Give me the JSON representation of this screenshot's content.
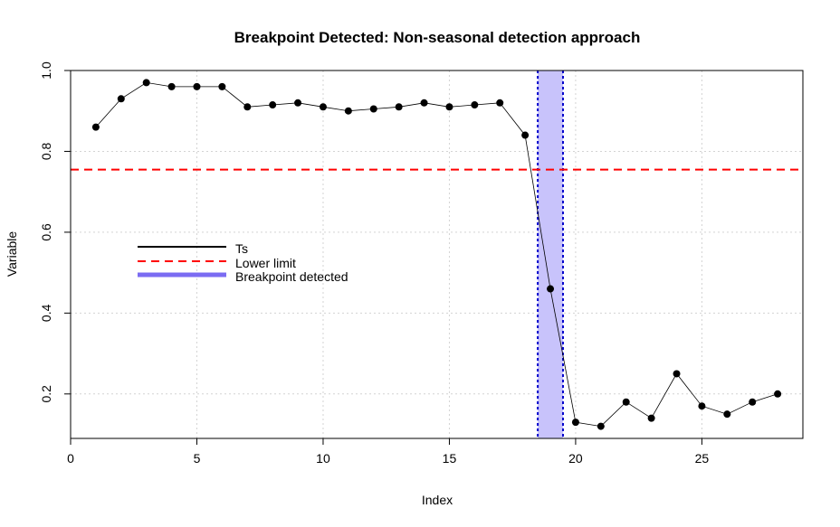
{
  "chart_data": {
    "type": "line",
    "title": "Breakpoint Detected: Non-seasonal detection approach",
    "xlabel": "Index",
    "ylabel": "Variable",
    "xlim": [
      0,
      29
    ],
    "ylim": [
      0.09,
      1.0
    ],
    "x_ticks": [
      0,
      5,
      10,
      15,
      20,
      25
    ],
    "y_ticks": [
      0.2,
      0.4,
      0.6,
      0.8,
      1.0
    ],
    "x_tick_labels": [
      "0",
      "5",
      "10",
      "15",
      "20",
      "25"
    ],
    "y_tick_labels": [
      "0.2",
      "0.4",
      "0.6",
      "0.8",
      "1.0"
    ],
    "grid": true,
    "series": [
      {
        "name": "Ts",
        "color": "#000000",
        "x": [
          1,
          2,
          3,
          4,
          5,
          6,
          7,
          8,
          9,
          10,
          11,
          12,
          13,
          14,
          15,
          16,
          17,
          18,
          19,
          20,
          21,
          22,
          23,
          24,
          25,
          26,
          27,
          28
        ],
        "values": [
          0.86,
          0.93,
          0.97,
          0.96,
          0.96,
          0.96,
          0.91,
          0.915,
          0.92,
          0.91,
          0.9,
          0.905,
          0.91,
          0.92,
          0.91,
          0.915,
          0.92,
          0.84,
          0.46,
          0.13,
          0.12,
          0.18,
          0.14,
          0.25,
          0.17,
          0.15,
          0.18,
          0.2
        ]
      }
    ],
    "lower_limit": {
      "name": "Lower limit",
      "value": 0.755,
      "color": "#ff0000"
    },
    "breakpoint": {
      "name": "Breakpoint detected",
      "from": 18.5,
      "to": 19.5,
      "fill_color": "#c8c3fb",
      "line_color": "#0000cc",
      "legend_color": "#7b6cf2"
    },
    "legend": {
      "position": "left-middle",
      "entries": [
        "Ts",
        "Lower limit",
        "Breakpoint detected"
      ]
    }
  }
}
